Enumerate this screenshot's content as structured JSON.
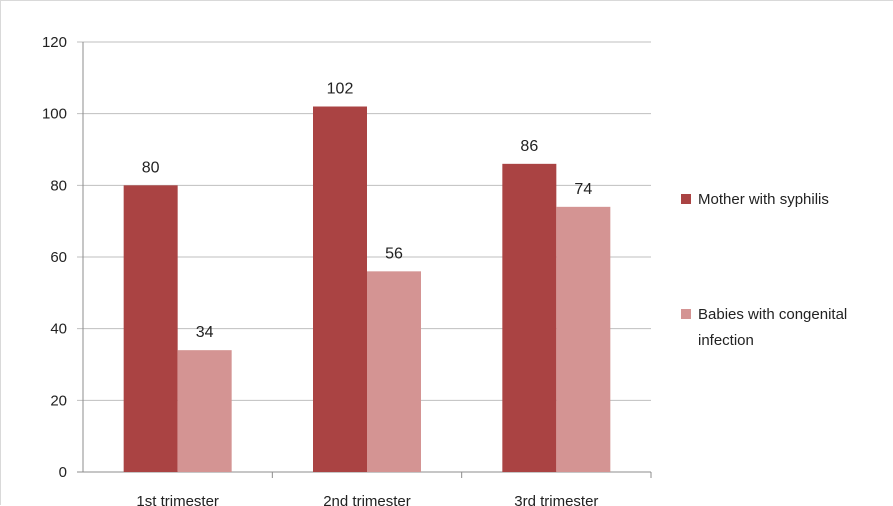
{
  "chart_data": {
    "type": "bar",
    "categories": [
      "1st trimester",
      "2nd trimester",
      "3rd trimester"
    ],
    "series": [
      {
        "name": "Mother with syphilis",
        "values": [
          80,
          102,
          86
        ],
        "color": "#aa4343"
      },
      {
        "name": "Babies with congenital infection",
        "values": [
          34,
          56,
          74
        ],
        "color": "#d49493"
      }
    ],
    "ylim": [
      0,
      120
    ],
    "yticks": [
      0,
      20,
      40,
      60,
      80,
      100,
      120
    ],
    "grid": true,
    "legend_position": "right",
    "legend_lines": [
      [
        "Mother with syphilis"
      ],
      [
        "Babies with congenital",
        "infection"
      ]
    ],
    "data_labels": true
  }
}
